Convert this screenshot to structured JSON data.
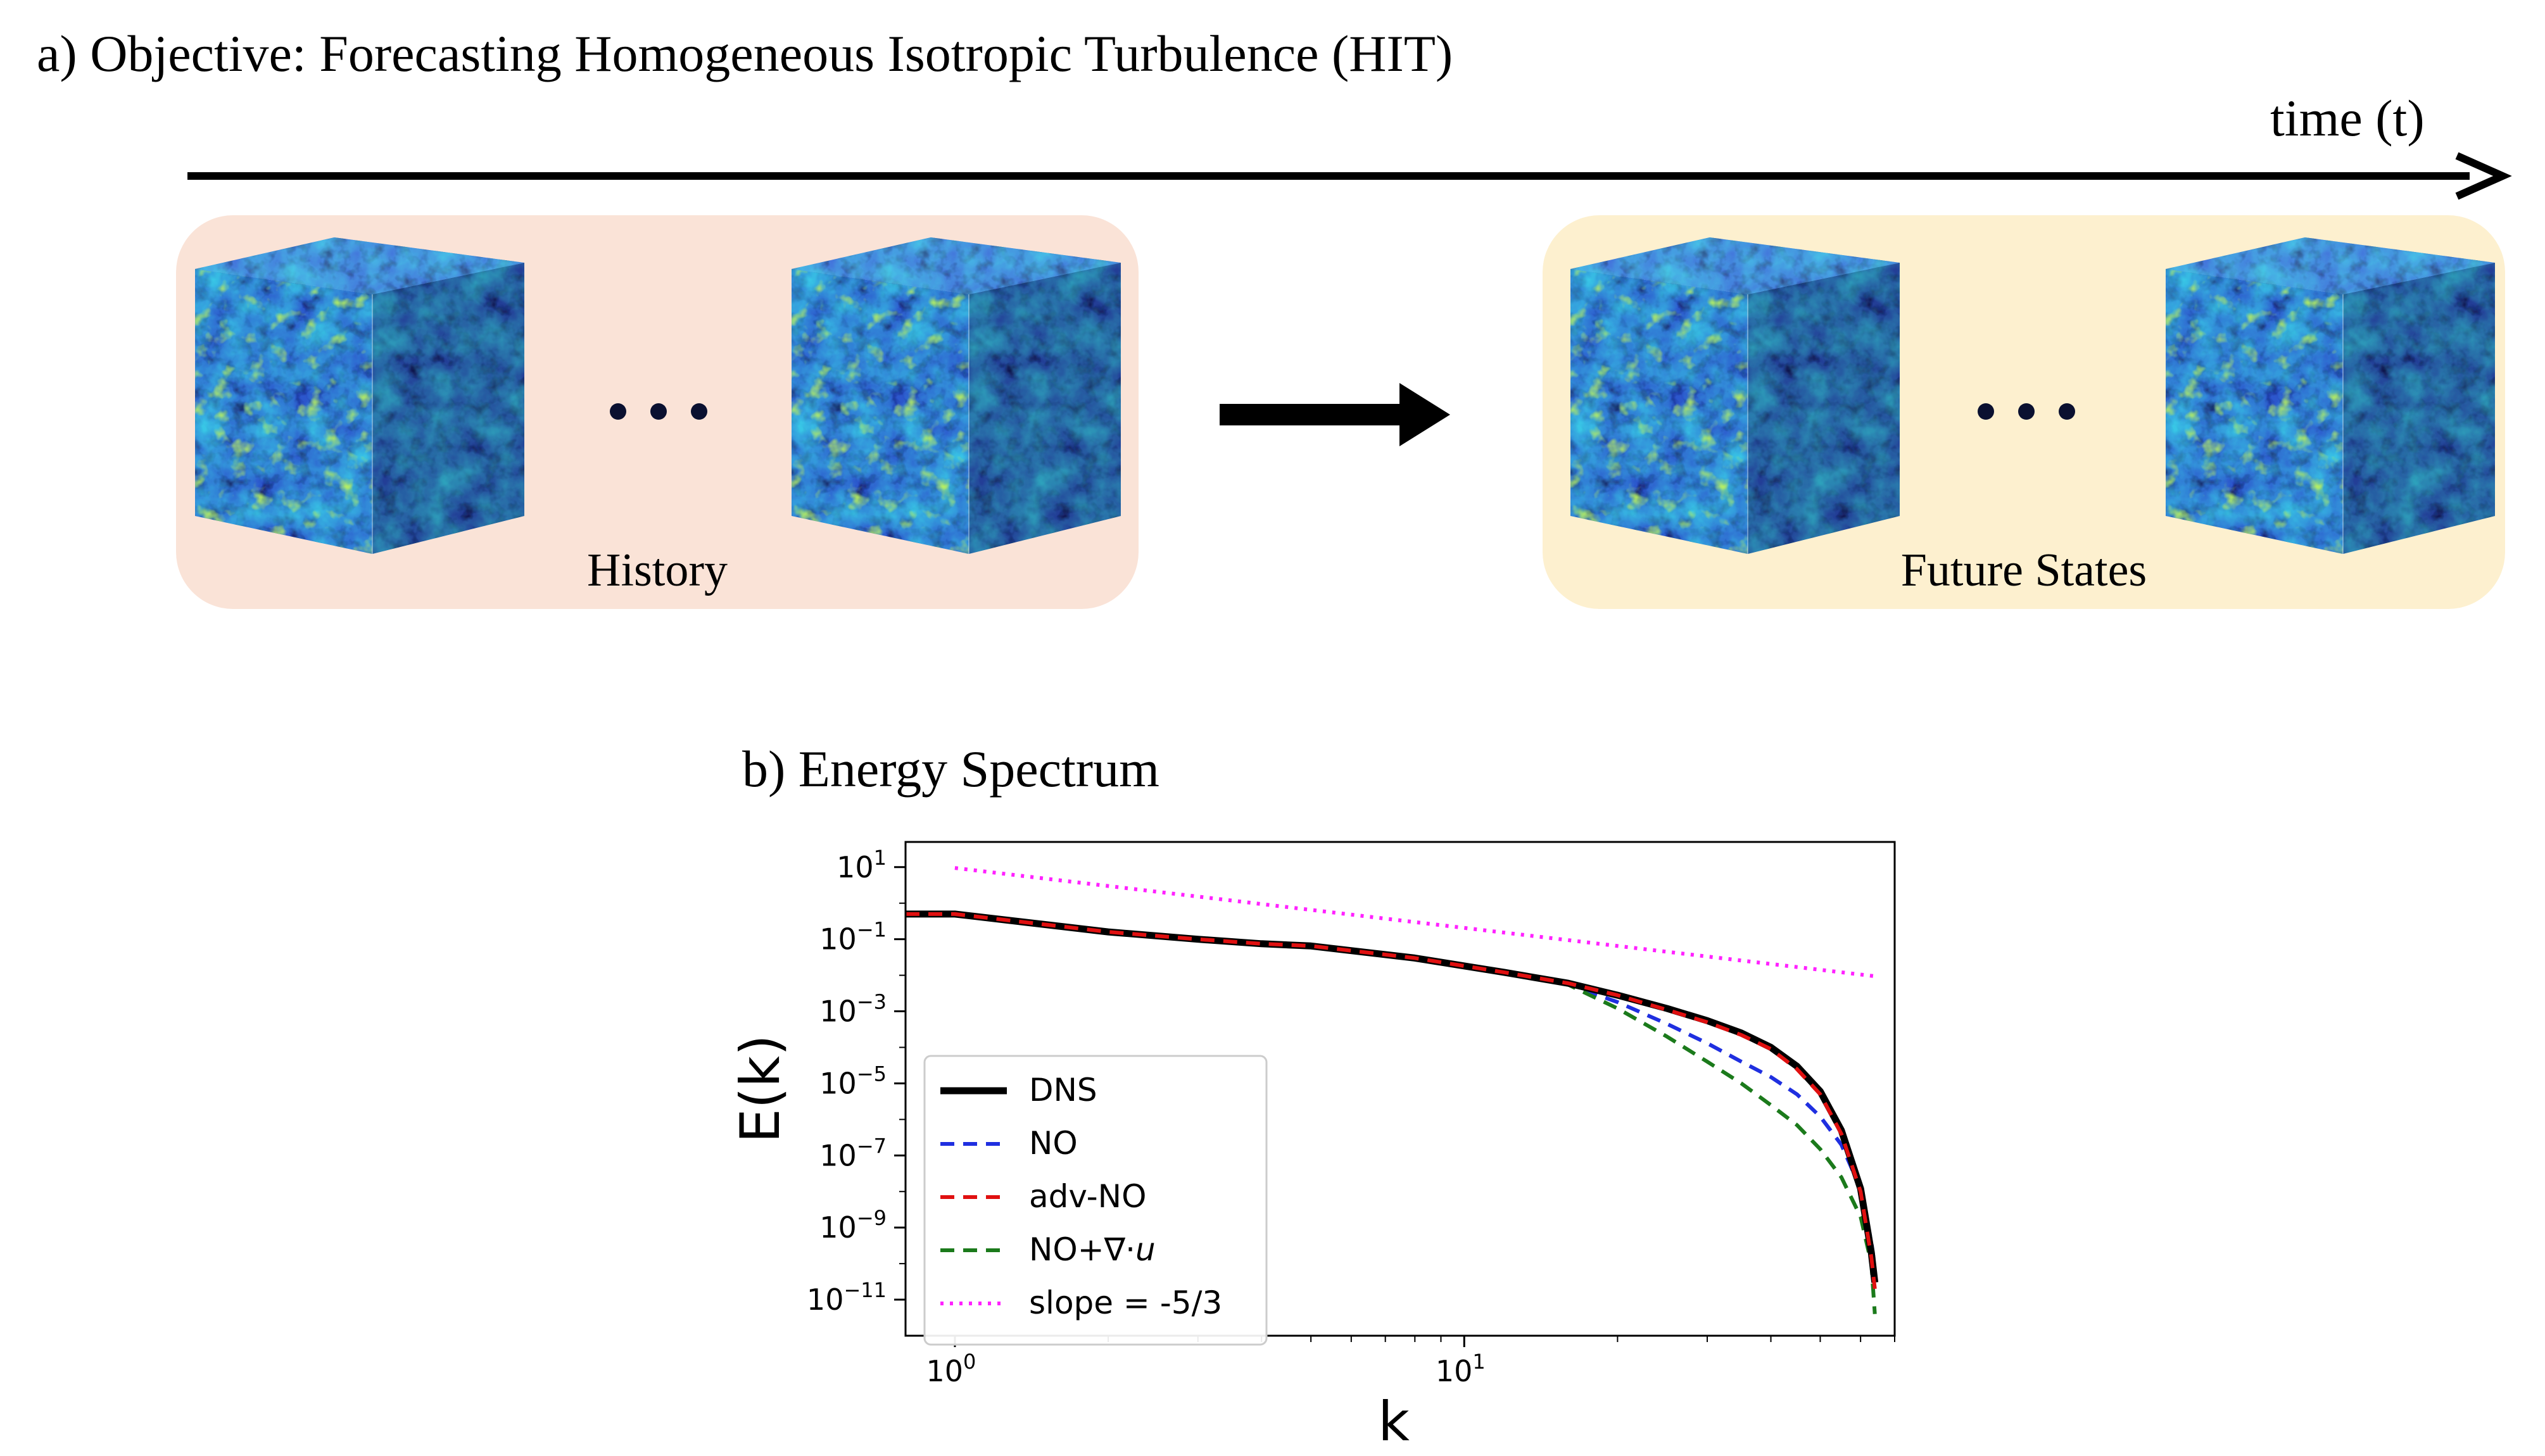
{
  "figure_a": {
    "title": "a) Objective: Forecasting Homogeneous Isotropic Turbulence (HIT)",
    "time_label": "time (t)",
    "history_label": "History",
    "future_label": "Future States",
    "ellipsis": "• • •",
    "colors": {
      "history_panel": "#fae3d7",
      "future_panel": "#fdf0cf",
      "field_dark": "#151a6e",
      "field_mid": "#2f5fd8",
      "field_light": "#36c8e0",
      "field_hot": "#bff05a"
    }
  },
  "figure_b": {
    "title": "b) Energy Spectrum"
  },
  "chart_data": {
    "type": "line",
    "xlabel": "k",
    "ylabel": "E(k)",
    "xscale": "log",
    "yscale": "log",
    "xlim": [
      0.8,
      70
    ],
    "ylim": [
      1e-12,
      50
    ],
    "x_ticks": [
      {
        "base": "10",
        "exp": "0",
        "value": 1
      },
      {
        "base": "10",
        "exp": "1",
        "value": 10
      }
    ],
    "y_ticks": [
      {
        "base": "10",
        "exp": "1",
        "value": 10
      },
      {
        "base": "10",
        "exp": "−1",
        "value": 0.1
      },
      {
        "base": "10",
        "exp": "−3",
        "value": 0.001
      },
      {
        "base": "10",
        "exp": "−5",
        "value": 1e-05
      },
      {
        "base": "10",
        "exp": "−7",
        "value": 1e-07
      },
      {
        "base": "10",
        "exp": "−9",
        "value": 1e-09
      },
      {
        "base": "10",
        "exp": "−11",
        "value": 1e-11
      }
    ],
    "legend_position": "lower-left",
    "series": [
      {
        "name": "DNS",
        "color": "#000000",
        "style": "solid",
        "x": [
          0.8,
          1,
          2,
          3,
          4,
          5,
          8,
          12,
          16,
          20,
          25,
          30,
          35,
          40,
          45,
          50,
          55,
          60,
          63,
          64
        ],
        "y": [
          0.5,
          0.5,
          0.16,
          0.1,
          0.075,
          0.065,
          0.03,
          0.012,
          0.006,
          0.0028,
          0.0012,
          0.00055,
          0.00025,
          0.0001,
          3e-05,
          6e-06,
          5e-07,
          1.2e-08,
          2e-10,
          3e-11
        ]
      },
      {
        "name": "NO",
        "color": "#1f2fe0",
        "style": "dashed",
        "x": [
          0.8,
          1,
          2,
          3,
          4,
          5,
          8,
          12,
          16,
          20,
          25,
          30,
          35,
          40,
          45,
          50,
          55,
          60,
          63,
          64
        ],
        "y": [
          0.5,
          0.5,
          0.16,
          0.1,
          0.075,
          0.065,
          0.03,
          0.012,
          0.0055,
          0.0018,
          0.00045,
          0.00013,
          4e-05,
          1.5e-05,
          5e-06,
          1.2e-06,
          2e-07,
          1.2e-08,
          4e-10,
          8e-11
        ]
      },
      {
        "name": "adv-NO",
        "color": "#e01010",
        "style": "dashed",
        "x": [
          0.8,
          1,
          2,
          3,
          4,
          5,
          8,
          12,
          16,
          20,
          25,
          30,
          35,
          40,
          45,
          50,
          55,
          60,
          63,
          64
        ],
        "y": [
          0.5,
          0.5,
          0.16,
          0.1,
          0.075,
          0.065,
          0.03,
          0.012,
          0.006,
          0.0028,
          0.0011,
          0.0005,
          0.00022,
          9e-05,
          2.5e-05,
          5e-06,
          4e-07,
          1e-08,
          1.5e-10,
          2e-11
        ]
      },
      {
        "name": "NO+∇·u",
        "name_text": "NO+∇·",
        "name_var": "u",
        "color": "#1b7a1b",
        "style": "dashed",
        "x": [
          0.8,
          1,
          2,
          3,
          4,
          5,
          8,
          12,
          16,
          20,
          25,
          30,
          35,
          40,
          45,
          50,
          55,
          60,
          63,
          64
        ],
        "y": [
          0.5,
          0.5,
          0.16,
          0.1,
          0.075,
          0.065,
          0.03,
          0.012,
          0.0055,
          0.0012,
          0.0002,
          4e-05,
          1e-05,
          2.5e-06,
          7e-07,
          1.5e-07,
          2.5e-08,
          2e-09,
          1e-10,
          4e-12
        ]
      },
      {
        "name": "slope = -5/3",
        "color": "#ff22ff",
        "style": "dotted",
        "x": [
          1,
          64
        ],
        "y": [
          9.5,
          0.0094
        ]
      }
    ]
  }
}
